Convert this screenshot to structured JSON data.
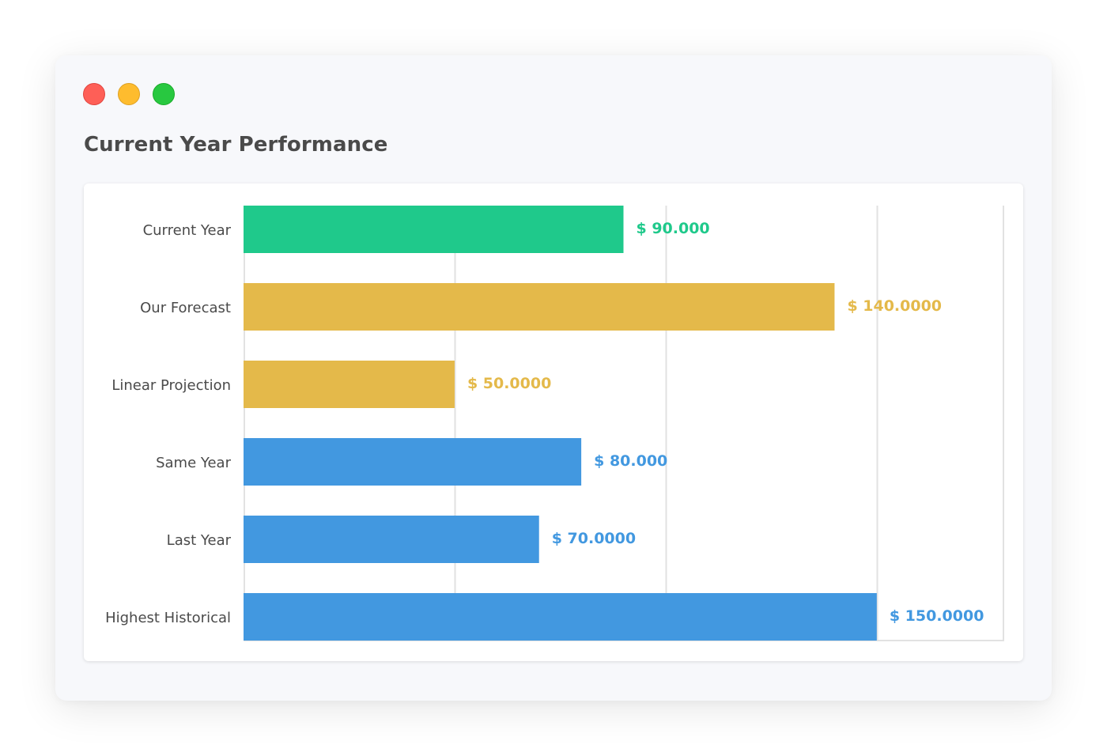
{
  "window": {
    "controls": [
      "close",
      "minimize",
      "maximize"
    ],
    "title": "Current Year Performance"
  },
  "colors": {
    "green": "#1fc98b",
    "yellow": "#e4b94a",
    "blue": "#4298e0",
    "grid": "#e2e2e2"
  },
  "chart_data": {
    "type": "bar",
    "orientation": "horizontal",
    "title": "Current Year Performance",
    "xlabel": "",
    "ylabel": "",
    "xlim": [
      0,
      180
    ],
    "grid": true,
    "categories": [
      "Current Year",
      "Our Forecast",
      "Linear Projection",
      "Same Year",
      "Last Year",
      "Highest Historical"
    ],
    "values": [
      90,
      140,
      50,
      80,
      70,
      150
    ],
    "value_labels": [
      "$ 90.000",
      "$ 140.0000",
      "$ 50.0000",
      "$ 80.000",
      "$ 70.0000",
      "$ 150.0000"
    ],
    "bar_colors": [
      "#1fc98b",
      "#e4b94a",
      "#e4b94a",
      "#4298e0",
      "#4298e0",
      "#4298e0"
    ]
  }
}
